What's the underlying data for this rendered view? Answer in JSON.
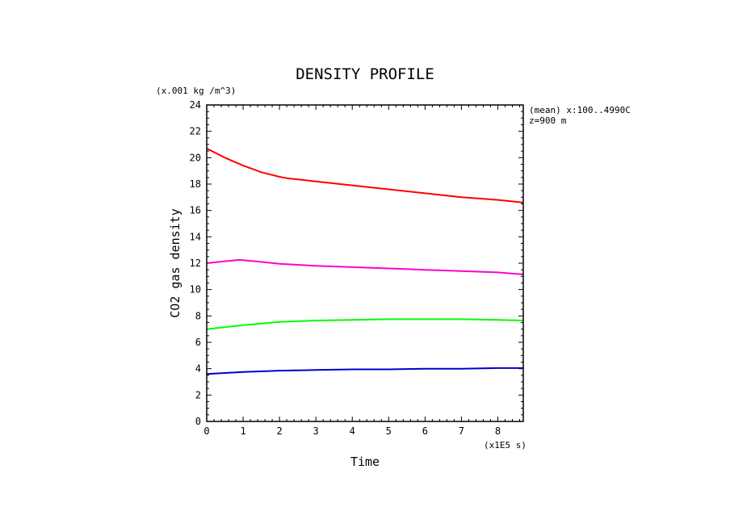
{
  "chart_data": {
    "type": "line",
    "title": "DENSITY PROFILE",
    "xlabel": "Time",
    "ylabel": "CO2 gas density",
    "x_units": "(x1E5 s)",
    "y_units": "(x.001 kg /m^3)",
    "annotation_lines": [
      "(mean) x:100..4990C",
      "z=900 m"
    ],
    "xlim": [
      0,
      8.7
    ],
    "ylim": [
      0,
      24
    ],
    "xticks": [
      0,
      1,
      2,
      3,
      4,
      5,
      6,
      7,
      8
    ],
    "yticks": [
      0,
      2,
      4,
      6,
      8,
      10,
      12,
      14,
      16,
      18,
      20,
      22,
      24
    ],
    "grid": false,
    "series": [
      {
        "color": "#ff0000",
        "x": [
          0,
          0.5,
          1,
          1.5,
          2,
          2.2,
          3,
          4,
          5,
          6,
          7,
          8,
          8.7
        ],
        "y": [
          20.7,
          20.0,
          19.4,
          18.9,
          18.55,
          18.45,
          18.2,
          17.9,
          17.6,
          17.3,
          17.0,
          16.8,
          16.6
        ]
      },
      {
        "color": "#ff00cc",
        "x": [
          0,
          0.5,
          0.9,
          1.5,
          2,
          3,
          4,
          5,
          6,
          7,
          8,
          8.7
        ],
        "y": [
          12.0,
          12.15,
          12.25,
          12.1,
          11.95,
          11.8,
          11.7,
          11.6,
          11.5,
          11.4,
          11.3,
          11.15
        ]
      },
      {
        "color": "#00ff00",
        "x": [
          0,
          1,
          2,
          3,
          4,
          5,
          6,
          7,
          8,
          8.7
        ],
        "y": [
          7.0,
          7.3,
          7.55,
          7.65,
          7.7,
          7.75,
          7.75,
          7.75,
          7.7,
          7.65
        ]
      },
      {
        "color": "#0000cc",
        "x": [
          0,
          1,
          2,
          3,
          4,
          5,
          6,
          7,
          8,
          8.7
        ],
        "y": [
          3.6,
          3.75,
          3.85,
          3.9,
          3.95,
          3.95,
          4.0,
          4.0,
          4.05,
          4.05
        ]
      }
    ]
  }
}
